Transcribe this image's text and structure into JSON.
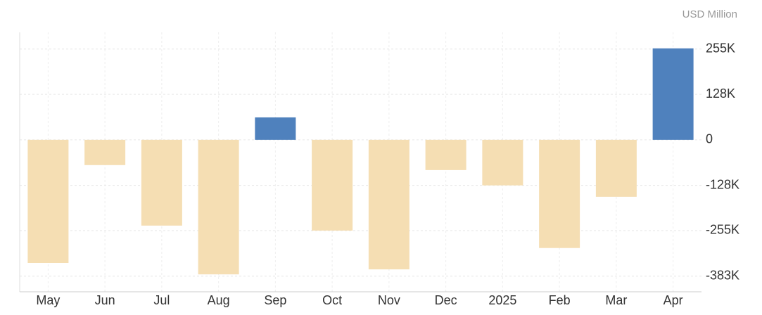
{
  "chart_data": {
    "type": "bar",
    "unit_label": "USD Million",
    "categories": [
      "May",
      "Jun",
      "Jul",
      "Aug",
      "Sep",
      "Oct",
      "Nov",
      "Dec",
      "2025",
      "Feb",
      "Mar",
      "Apr"
    ],
    "values": [
      -346000,
      -71000,
      -241000,
      -378000,
      63000,
      -255000,
      -364000,
      -85000,
      -128000,
      -304000,
      -160000,
      257000
    ],
    "positive_color": "#4f81bd",
    "negative_color": "#f5deb3",
    "ylim": [
      -427000,
      302000
    ],
    "yticks": [
      {
        "value": -383000,
        "label": "-383K"
      },
      {
        "value": -255000,
        "label": "-255K"
      },
      {
        "value": -128000,
        "label": "-128K"
      },
      0,
      {
        "value": 128000,
        "label": "128K"
      },
      {
        "value": 255000,
        "label": "255K"
      }
    ],
    "grid": true
  }
}
